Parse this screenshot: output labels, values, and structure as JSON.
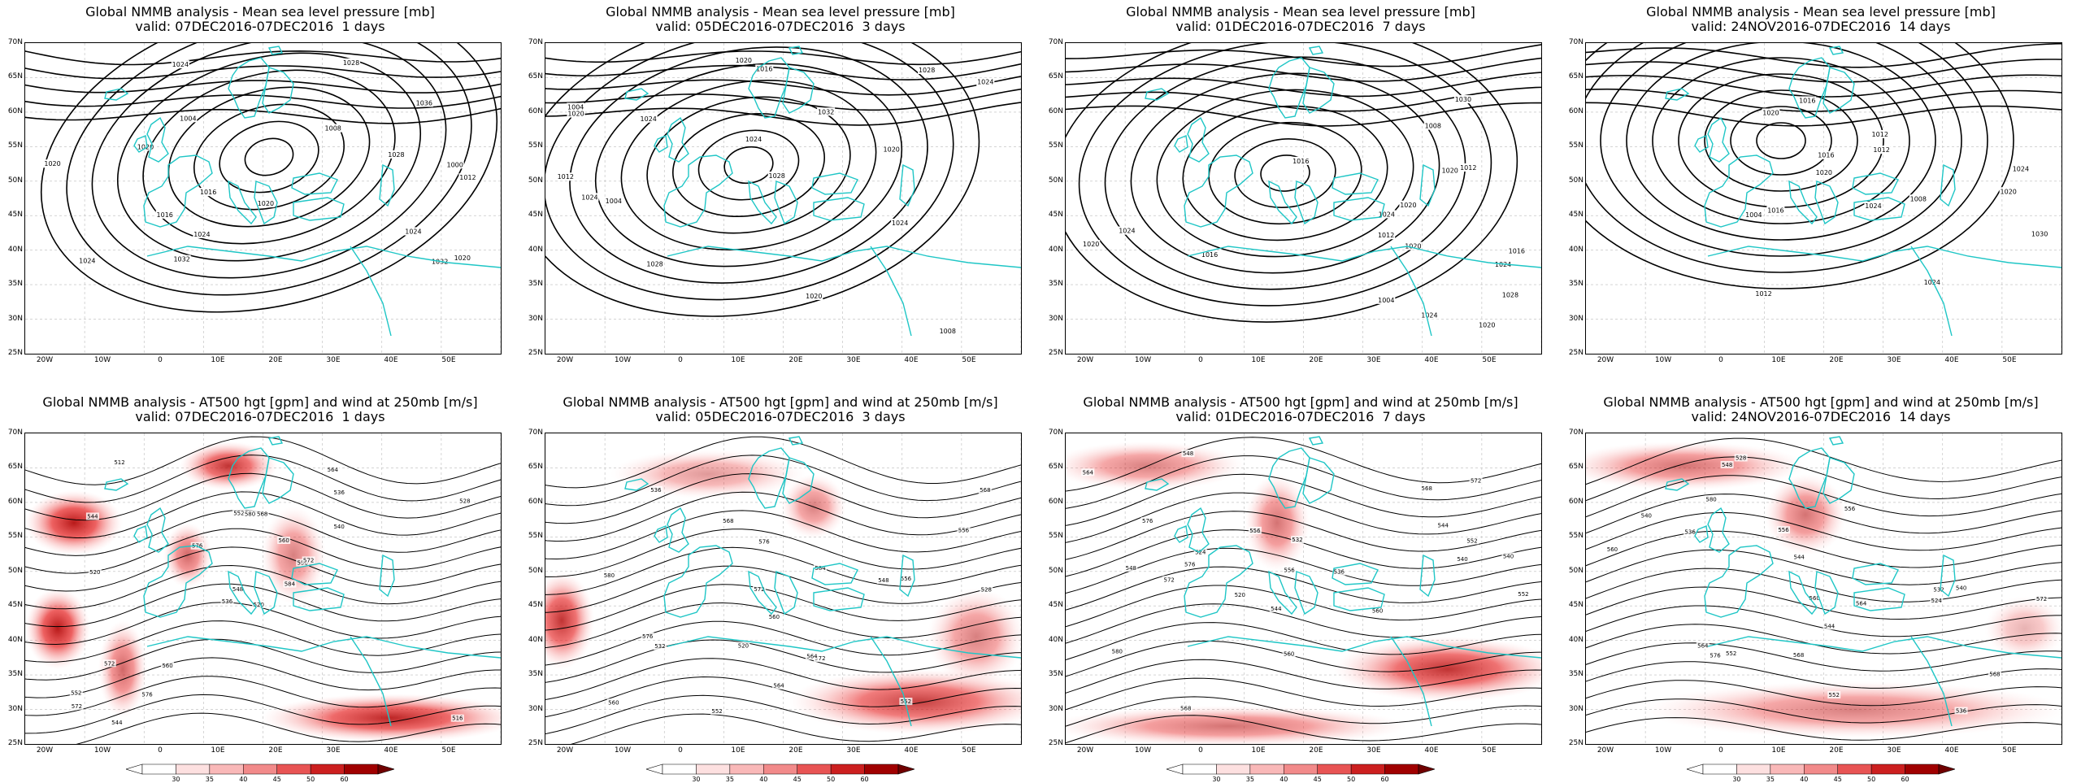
{
  "panels": [
    {
      "line1": "Global NMMB analysis - Mean sea level pressure [mb]",
      "line2": "valid: 07DEC2016-07DEC2016  1 days",
      "kind": "slp"
    },
    {
      "line1": "Global NMMB analysis - Mean sea level pressure [mb]",
      "line2": "valid: 05DEC2016-07DEC2016  3 days",
      "kind": "slp"
    },
    {
      "line1": "Global NMMB analysis - Mean sea level pressure [mb]",
      "line2": "valid: 01DEC2016-07DEC2016  7 days",
      "kind": "slp"
    },
    {
      "line1": "Global NMMB analysis - Mean sea level pressure [mb]",
      "line2": "valid: 24NOV2016-07DEC2016  14 days",
      "kind": "slp"
    },
    {
      "line1": "Global NMMB analysis - AT500 hgt [gpm] and wind at 250mb [m/s]",
      "line2": "valid: 07DEC2016-07DEC2016  1 days",
      "kind": "z500"
    },
    {
      "line1": "Global NMMB analysis - AT500 hgt [gpm] and wind at 250mb [m/s]",
      "line2": "valid: 05DEC2016-07DEC2016  3 days",
      "kind": "z500"
    },
    {
      "line1": "Global NMMB analysis - AT500 hgt [gpm] and wind at 250mb [m/s]",
      "line2": "valid: 01DEC2016-07DEC2016  7 days",
      "kind": "z500"
    },
    {
      "line1": "Global NMMB analysis - AT500 hgt [gpm] and wind at 250mb [m/s]",
      "line2": "valid: 24NOV2016-07DEC2016  14 days",
      "kind": "z500"
    }
  ],
  "lat_labels": [
    "70N",
    "65N",
    "60N",
    "55N",
    "50N",
    "45N",
    "40N",
    "35N",
    "30N",
    "25N"
  ],
  "lon_labels": [
    "20W",
    "10W",
    "0",
    "10E",
    "20E",
    "30E",
    "40E",
    "50E"
  ],
  "colorbar_labels": [
    "30",
    "35",
    "40",
    "45",
    "50",
    "60"
  ],
  "colors": {
    "contour": "#000000",
    "coast": "#1fc6c6",
    "jet_dark": "#b00000",
    "jet_light": "#ffd0d0"
  },
  "slp_labels": [
    [
      "1004",
      "1000",
      "1008",
      "1012",
      "1016",
      "1020",
      "1024",
      "1028",
      "1032",
      "1036",
      "1020",
      "1024",
      "1028",
      "1032",
      "1024",
      "1020",
      "1016",
      "1020",
      "1024"
    ],
    [
      "1012",
      "1016",
      "1020",
      "1024",
      "1004",
      "1008",
      "1004",
      "1032",
      "1024",
      "1028",
      "1028",
      "1024",
      "1020",
      "1020",
      "1024",
      "1028",
      "1020",
      "1024"
    ],
    [
      "1012",
      "1016",
      "1020",
      "1024",
      "1004",
      "1008",
      "1012",
      "1016",
      "1028",
      "1024",
      "1020",
      "1024",
      "1020",
      "1020",
      "1016",
      "1020",
      "1030",
      "1024"
    ],
    [
      "1012",
      "1016",
      "1020",
      "1024",
      "1004",
      "1008",
      "1012",
      "1016",
      "1020",
      "1024",
      "1030",
      "1024",
      "1012",
      "1016",
      "1020"
    ]
  ],
  "z500_labels": [
    [
      "520",
      "544",
      "548",
      "552",
      "556",
      "560",
      "564",
      "568",
      "536",
      "584",
      "512",
      "516",
      "520",
      "528",
      "536",
      "540",
      "544",
      "552",
      "560",
      "572",
      "576",
      "572",
      "576",
      "580",
      "572"
    ],
    [
      "548",
      "552",
      "556",
      "560",
      "564",
      "568",
      "572",
      "576",
      "520",
      "528",
      "532",
      "536",
      "552",
      "556",
      "560",
      "568",
      "572",
      "576",
      "580",
      "584",
      "564"
    ],
    [
      "540",
      "544",
      "548",
      "552",
      "556",
      "560",
      "568",
      "572",
      "576",
      "520",
      "524",
      "532",
      "536",
      "540",
      "544",
      "548",
      "552",
      "556",
      "560",
      "564",
      "568",
      "572",
      "576",
      "580"
    ],
    [
      "536",
      "540",
      "544",
      "548",
      "552",
      "556",
      "560",
      "564",
      "568",
      "524",
      "528",
      "532",
      "536",
      "540",
      "544",
      "552",
      "556",
      "560",
      "564",
      "568",
      "572",
      "576",
      "580"
    ]
  ]
}
